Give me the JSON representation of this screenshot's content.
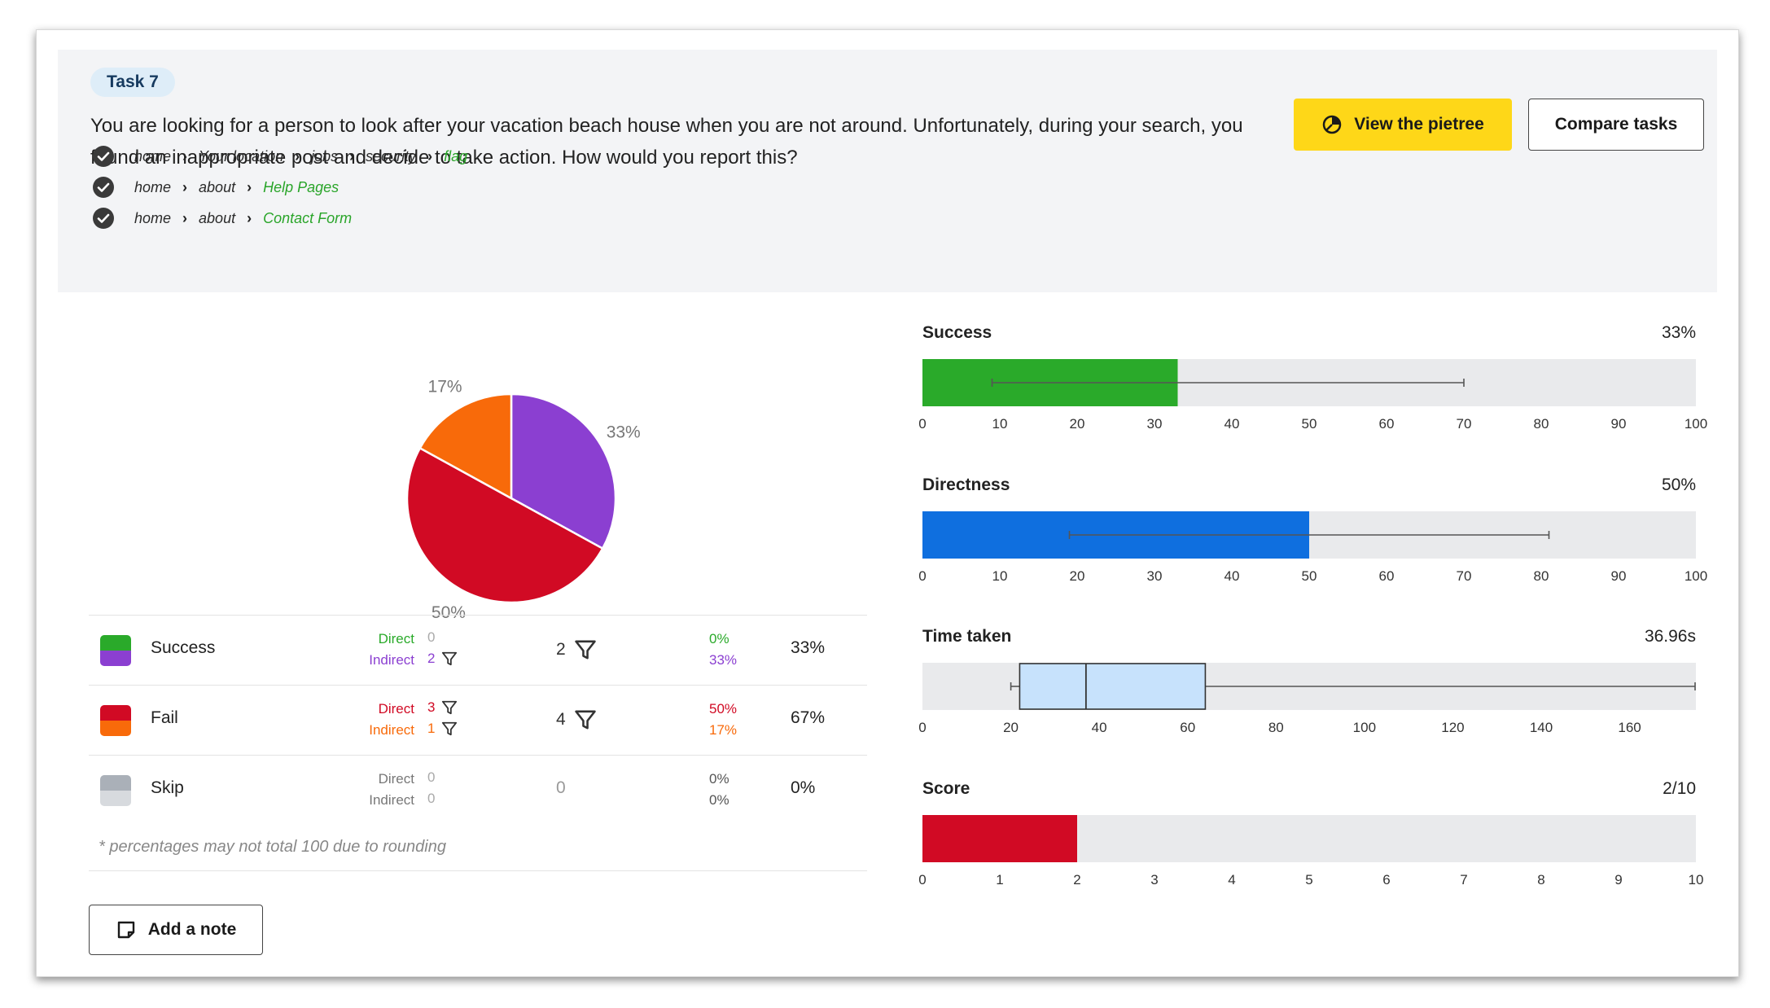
{
  "task": {
    "badge": "Task 7",
    "question": "You are looking for a person to look after your vacation beach house when you are not around. Unfortunately, during your search, you found an inappropriate post and decide to take action. How would you report this?",
    "view_pietree_label": "View the pietree",
    "compare_tasks_label": "Compare tasks",
    "paths": [
      [
        "home",
        "Your location",
        "jobs",
        "security",
        "flag"
      ],
      [
        "home",
        "about",
        "Help Pages"
      ],
      [
        "home",
        "about",
        "Contact Form"
      ]
    ]
  },
  "pie": {
    "slices": [
      {
        "label": "33%",
        "value": 33,
        "color": "#8b3fd1"
      },
      {
        "label": "50%",
        "value": 50,
        "color": "#d10a24"
      },
      {
        "label": "17%",
        "value": 17,
        "color": "#f86a0a"
      }
    ]
  },
  "results": {
    "rows": [
      {
        "label": "Success",
        "colors": [
          "#2aaa2a",
          "#8b3fd1"
        ],
        "direct_label": "Direct",
        "indirect_label": "Indirect",
        "direct": "0",
        "indirect": "2",
        "direct_color": "#2aaa2a",
        "indirect_color": "#8b3fd1",
        "total": "2",
        "direct_pct": "0%",
        "indirect_pct": "33%",
        "overall": "33%"
      },
      {
        "label": "Fail",
        "colors": [
          "#d10a24",
          "#f86a0a"
        ],
        "direct_label": "Direct",
        "indirect_label": "Indirect",
        "direct": "3",
        "indirect": "1",
        "direct_color": "#d10a24",
        "indirect_color": "#f86a0a",
        "total": "4",
        "direct_pct": "50%",
        "indirect_pct": "17%",
        "overall": "67%"
      },
      {
        "label": "Skip",
        "colors": [
          "#aab0b8",
          "#d7dade"
        ],
        "direct_label": "Direct",
        "indirect_label": "Indirect",
        "direct": "0",
        "indirect": "0",
        "direct_color": "#777777",
        "indirect_color": "#777777",
        "total": "0",
        "direct_pct": "0%",
        "indirect_pct": "0%",
        "overall": "0%"
      }
    ],
    "footnote": "* percentages may not total 100 due to rounding",
    "add_note_label": "Add a note"
  },
  "chart_data": [
    {
      "type": "bar",
      "title": "Success",
      "value_label": "33%",
      "value": 33,
      "xlim": [
        0,
        100
      ],
      "ticks": [
        "0",
        "10",
        "20",
        "30",
        "40",
        "50",
        "60",
        "70",
        "80",
        "90",
        "100"
      ],
      "whisker": [
        9,
        70
      ],
      "color": "#2aaa2a"
    },
    {
      "type": "bar",
      "title": "Directness",
      "value_label": "50%",
      "value": 50,
      "xlim": [
        0,
        100
      ],
      "ticks": [
        "0",
        "10",
        "20",
        "30",
        "40",
        "50",
        "60",
        "70",
        "80",
        "90",
        "100"
      ],
      "whisker": [
        19,
        81
      ],
      "color": "#0f6fdf"
    },
    {
      "type": "box",
      "title": "Time taken",
      "value_label": "36.96s",
      "xlim": [
        0,
        175
      ],
      "ticks": [
        "0",
        "20",
        "40",
        "60",
        "80",
        "100",
        "120",
        "140",
        "160"
      ],
      "tick_values": [
        0,
        20,
        40,
        60,
        80,
        100,
        120,
        140,
        160
      ],
      "box": {
        "min": 20,
        "q1": 22,
        "median": 37,
        "q3": 64,
        "max": 175
      },
      "color": "#c7e2fc"
    },
    {
      "type": "bar",
      "title": "Score",
      "value_label": "2/10",
      "value": 2,
      "xlim": [
        0,
        10
      ],
      "ticks": [
        "0",
        "1",
        "2",
        "3",
        "4",
        "5",
        "6",
        "7",
        "8",
        "9",
        "10"
      ],
      "color": "#d10a24"
    }
  ]
}
